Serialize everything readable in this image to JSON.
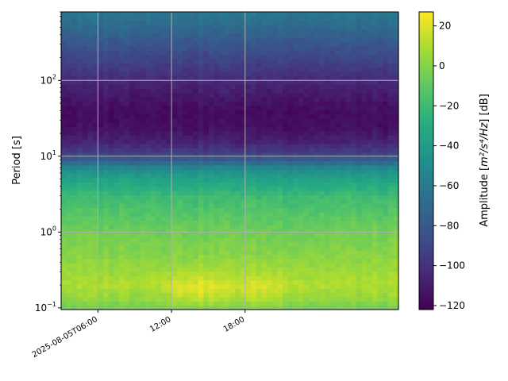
{
  "chart_data": {
    "type": "heatmap",
    "title": "",
    "xlabel": "",
    "ylabel": "Period [s]",
    "colorbar": {
      "label_prefix": "Amplitude [",
      "label_unit_html": "m²/s⁴/Hz",
      "label_suffix": "] [dB]",
      "range": [
        -122,
        27
      ],
      "ticks": [
        20,
        0,
        -20,
        -40,
        -60,
        -80,
        -100,
        -120
      ],
      "colormap": "viridis"
    },
    "x_axis": {
      "type": "time",
      "range_hours": [
        0,
        27.5
      ],
      "start_label": "2025-08-05T03:00",
      "ticks": [
        {
          "hours": 3,
          "label": "2025-08-05T06:00"
        },
        {
          "hours": 9,
          "label": "12:00"
        },
        {
          "hours": 15,
          "label": "18:00"
        }
      ],
      "tick_rotation_deg": 30
    },
    "y_axis": {
      "type": "log",
      "range": [
        0.095,
        800
      ],
      "ticks": [
        {
          "value": 0.1,
          "label_base": "10",
          "label_exp": "−1"
        },
        {
          "value": 1,
          "label_base": "10",
          "label_exp": "0"
        },
        {
          "value": 10,
          "label_base": "10",
          "label_exp": "1"
        },
        {
          "value": 100,
          "label_base": "10",
          "label_exp": "2"
        }
      ]
    },
    "grid": true,
    "profile_db": [
      {
        "period": 800,
        "db": -62
      },
      {
        "period": 500,
        "db": -70
      },
      {
        "period": 300,
        "db": -82
      },
      {
        "period": 150,
        "db": -95
      },
      {
        "period": 80,
        "db": -108
      },
      {
        "period": 40,
        "db": -117
      },
      {
        "period": 25,
        "db": -116
      },
      {
        "period": 15,
        "db": -106
      },
      {
        "period": 10,
        "db": -88
      },
      {
        "period": 7,
        "db": -52
      },
      {
        "period": 5,
        "db": -35
      },
      {
        "period": 3,
        "db": -20
      },
      {
        "period": 1.5,
        "db": -10
      },
      {
        "period": 0.8,
        "db": -3
      },
      {
        "period": 0.4,
        "db": 3
      },
      {
        "period": 0.2,
        "db": 10
      },
      {
        "period": 0.13,
        "db": 3
      },
      {
        "period": 0.1,
        "db": -5
      }
    ],
    "hot_spots": [
      {
        "hours": 11.0,
        "period": 0.17,
        "db_boost": 12
      },
      {
        "hours": 16.5,
        "period": 0.17,
        "db_boost": 9
      }
    ]
  }
}
